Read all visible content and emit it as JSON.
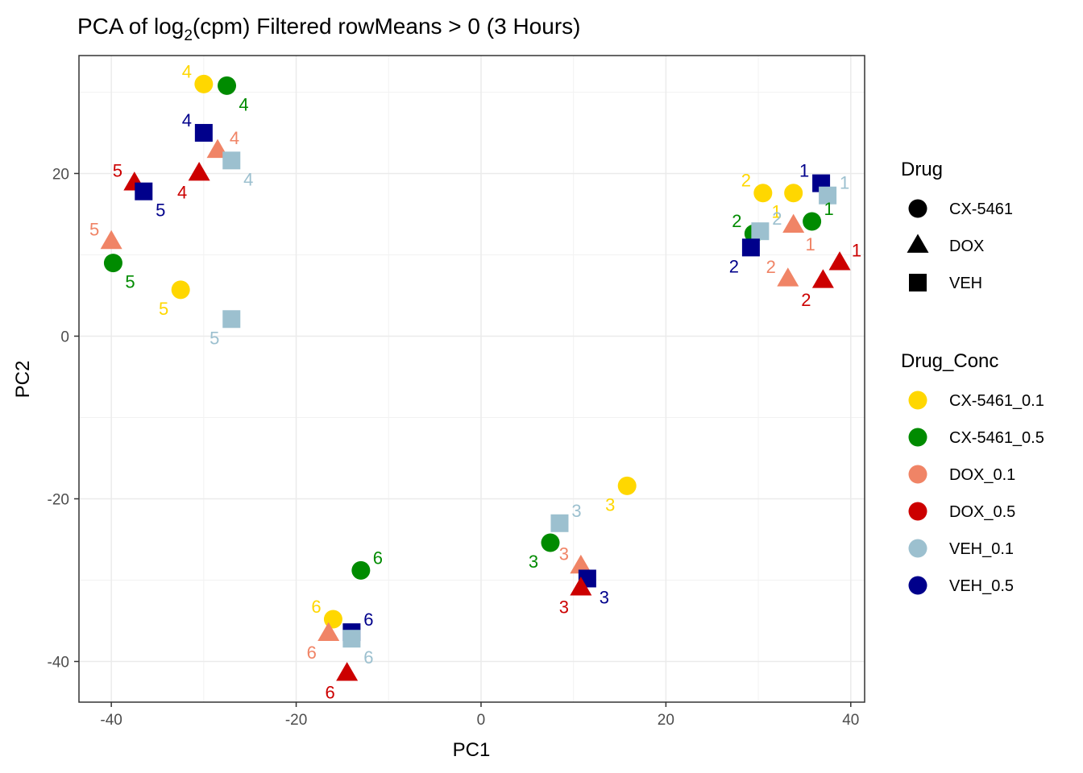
{
  "chart_data": {
    "type": "scatter",
    "title": {
      "prefix": "PCA of log",
      "subscript": "2",
      "suffix": "(cpm) Filtered rowMeans > 0 (3 Hours)"
    },
    "xlabel": "PC1",
    "ylabel": "PC2",
    "xlim": [
      -43.5,
      41.5
    ],
    "ylim": [
      -45,
      34.5
    ],
    "xticks": [
      -40,
      -20,
      0,
      20,
      40
    ],
    "yticks": [
      -40,
      -20,
      0,
      20
    ],
    "grid": true,
    "legend": {
      "placement": "right",
      "shape_title": "Drug",
      "shape_items": [
        {
          "label": "CX-5461",
          "shape": "circle"
        },
        {
          "label": "DOX",
          "shape": "triangle"
        },
        {
          "label": "VEH",
          "shape": "square"
        }
      ],
      "color_title": "Drug_Conc",
      "color_items": [
        {
          "label": "CX-5461_0.1",
          "color": "#FFD700"
        },
        {
          "label": "CX-5461_0.5",
          "color": "#008B00"
        },
        {
          "label": "DOX_0.1",
          "color": "#F08466"
        },
        {
          "label": "DOX_0.5",
          "color": "#CC0000"
        },
        {
          "label": "VEH_0.1",
          "color": "#9CC0CF"
        },
        {
          "label": "VEH_0.5",
          "color": "#00008B"
        }
      ]
    },
    "points": [
      {
        "x": -30,
        "y": 31,
        "group": "CX-5461_0.1",
        "shape": "circle",
        "label": "4",
        "lpos": "ul"
      },
      {
        "x": -27.5,
        "y": 30.8,
        "group": "CX-5461_0.5",
        "shape": "circle",
        "label": "4",
        "lpos": "lr"
      },
      {
        "x": -30,
        "y": 25,
        "group": "VEH_0.5",
        "shape": "square",
        "label": "4",
        "lpos": "ul"
      },
      {
        "x": -28.5,
        "y": 22.8,
        "group": "DOX_0.1",
        "shape": "triangle",
        "label": "4",
        "lpos": "ur"
      },
      {
        "x": -27,
        "y": 21.6,
        "group": "VEH_0.1",
        "shape": "square",
        "label": "4",
        "lpos": "lr"
      },
      {
        "x": -30.5,
        "y": 20,
        "group": "DOX_0.5",
        "shape": "triangle",
        "label": "4",
        "lpos": "ll"
      },
      {
        "x": -37.5,
        "y": 18.8,
        "group": "DOX_0.5",
        "shape": "triangle",
        "label": "5",
        "lpos": "ul"
      },
      {
        "x": -36.5,
        "y": 17.8,
        "group": "VEH_0.5",
        "shape": "square",
        "label": "5",
        "lpos": "lr"
      },
      {
        "x": -40,
        "y": 11.6,
        "group": "DOX_0.1",
        "shape": "triangle",
        "label": "5",
        "lpos": "ul"
      },
      {
        "x": -39.8,
        "y": 9,
        "group": "CX-5461_0.5",
        "shape": "circle",
        "label": "5",
        "lpos": "lr"
      },
      {
        "x": -32.5,
        "y": 5.7,
        "group": "CX-5461_0.1",
        "shape": "circle",
        "label": "5",
        "lpos": "ll"
      },
      {
        "x": -27,
        "y": 2.1,
        "group": "VEH_0.1",
        "shape": "square",
        "label": "5",
        "lpos": "ll"
      },
      {
        "x": 30.5,
        "y": 17.6,
        "group": "CX-5461_0.1",
        "shape": "circle",
        "label": "2",
        "lpos": "ul"
      },
      {
        "x": 33.8,
        "y": 17.6,
        "group": "CX-5461_0.1",
        "shape": "circle",
        "label": "1",
        "lpos": "ll"
      },
      {
        "x": 36.8,
        "y": 18.8,
        "group": "VEH_0.5",
        "shape": "square",
        "label": "1",
        "lpos": "ul"
      },
      {
        "x": 37.5,
        "y": 17.3,
        "group": "VEH_0.1",
        "shape": "square",
        "label": "1",
        "lpos": "ur"
      },
      {
        "x": 35.8,
        "y": 14.1,
        "group": "CX-5461_0.5",
        "shape": "circle",
        "label": "1",
        "lpos": "ur"
      },
      {
        "x": 29.5,
        "y": 12.6,
        "group": "CX-5461_0.5",
        "shape": "circle",
        "label": "2",
        "lpos": "ul"
      },
      {
        "x": 30.2,
        "y": 12.9,
        "group": "VEH_0.1",
        "shape": "square",
        "label": "2",
        "lpos": "ur"
      },
      {
        "x": 33.8,
        "y": 13.6,
        "group": "DOX_0.1",
        "shape": "triangle",
        "label": "1",
        "lpos": "lr"
      },
      {
        "x": 29.2,
        "y": 10.9,
        "group": "VEH_0.5",
        "shape": "square",
        "label": "2",
        "lpos": "ll"
      },
      {
        "x": 38.8,
        "y": 9,
        "group": "DOX_0.5",
        "shape": "triangle",
        "label": "1",
        "lpos": "ur"
      },
      {
        "x": 33.2,
        "y": 7,
        "group": "DOX_0.1",
        "shape": "triangle",
        "label": "2",
        "lpos": "ul"
      },
      {
        "x": 37,
        "y": 6.8,
        "group": "DOX_0.5",
        "shape": "triangle",
        "label": "2",
        "lpos": "ll"
      },
      {
        "x": 15.8,
        "y": -18.4,
        "group": "CX-5461_0.1",
        "shape": "circle",
        "label": "3",
        "lpos": "ll"
      },
      {
        "x": 8.5,
        "y": -23,
        "group": "VEH_0.1",
        "shape": "square",
        "label": "3",
        "lpos": "ur"
      },
      {
        "x": 7.5,
        "y": -25.4,
        "group": "CX-5461_0.5",
        "shape": "circle",
        "label": "3",
        "lpos": "ll"
      },
      {
        "x": 10.8,
        "y": -28.3,
        "group": "DOX_0.1",
        "shape": "triangle",
        "label": "3",
        "lpos": "ul"
      },
      {
        "x": 11.5,
        "y": -29.8,
        "group": "VEH_0.5",
        "shape": "square",
        "label": "3",
        "lpos": "lr"
      },
      {
        "x": 10.8,
        "y": -31,
        "group": "DOX_0.5",
        "shape": "triangle",
        "label": "3",
        "lpos": "ll"
      },
      {
        "x": -13,
        "y": -28.8,
        "group": "CX-5461_0.5",
        "shape": "circle",
        "label": "6",
        "lpos": "ur"
      },
      {
        "x": -16,
        "y": -34.8,
        "group": "CX-5461_0.1",
        "shape": "circle",
        "label": "6",
        "lpos": "ul"
      },
      {
        "x": -14,
        "y": -36.4,
        "group": "VEH_0.5",
        "shape": "square",
        "label": "6",
        "lpos": "ur"
      },
      {
        "x": -16.5,
        "y": -36.6,
        "group": "DOX_0.1",
        "shape": "triangle",
        "label": "6",
        "lpos": "ll"
      },
      {
        "x": -14,
        "y": -37.2,
        "group": "VEH_0.1",
        "shape": "square",
        "label": "6",
        "lpos": "lr"
      },
      {
        "x": -14.5,
        "y": -41.5,
        "group": "DOX_0.5",
        "shape": "triangle",
        "label": "6",
        "lpos": "ll"
      }
    ]
  }
}
